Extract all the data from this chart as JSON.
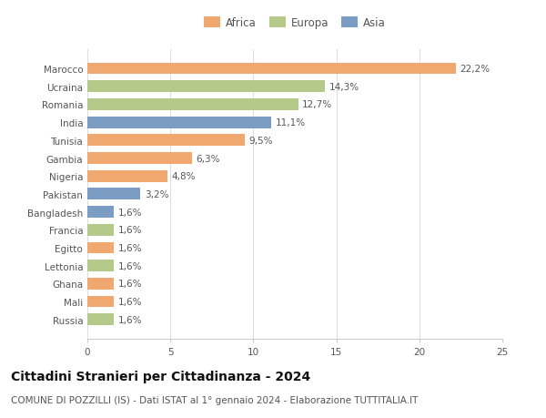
{
  "categories": [
    "Marocco",
    "Ucraina",
    "Romania",
    "India",
    "Tunisia",
    "Gambia",
    "Nigeria",
    "Pakistan",
    "Bangladesh",
    "Francia",
    "Egitto",
    "Lettonia",
    "Ghana",
    "Mali",
    "Russia"
  ],
  "values": [
    22.2,
    14.3,
    12.7,
    11.1,
    9.5,
    6.3,
    4.8,
    3.2,
    1.6,
    1.6,
    1.6,
    1.6,
    1.6,
    1.6,
    1.6
  ],
  "labels": [
    "22,2%",
    "14,3%",
    "12,7%",
    "11,1%",
    "9,5%",
    "6,3%",
    "4,8%",
    "3,2%",
    "1,6%",
    "1,6%",
    "1,6%",
    "1,6%",
    "1,6%",
    "1,6%",
    "1,6%"
  ],
  "continents": [
    "Africa",
    "Europa",
    "Europa",
    "Asia",
    "Africa",
    "Africa",
    "Africa",
    "Asia",
    "Asia",
    "Europa",
    "Africa",
    "Europa",
    "Africa",
    "Africa",
    "Europa"
  ],
  "colors": {
    "Africa": "#F0A870",
    "Europa": "#B5C98A",
    "Asia": "#7B9DC4"
  },
  "legend_labels": [
    "Africa",
    "Europa",
    "Asia"
  ],
  "title": "Cittadini Stranieri per Cittadinanza - 2024",
  "subtitle": "COMUNE DI POZZILLI (IS) - Dati ISTAT al 1° gennaio 2024 - Elaborazione TUTTITALIA.IT",
  "xlim": [
    0,
    25
  ],
  "xticks": [
    0,
    5,
    10,
    15,
    20,
    25
  ],
  "background_color": "#ffffff",
  "bar_height": 0.65,
  "title_fontsize": 10,
  "subtitle_fontsize": 7.5,
  "label_fontsize": 7.5,
  "tick_fontsize": 7.5,
  "legend_fontsize": 8.5
}
